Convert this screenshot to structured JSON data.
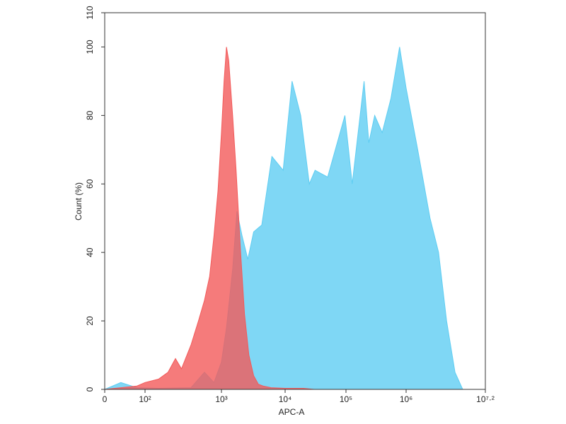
{
  "chart_data": {
    "type": "area",
    "x_label": "APC-A",
    "y_label": "Count (%)",
    "xticks": [
      {
        "value": 0,
        "label": "0"
      },
      {
        "value": 100,
        "label": "10²"
      },
      {
        "value": 1000,
        "label": "10³"
      },
      {
        "value": 10000,
        "label": "10⁴"
      },
      {
        "value": 100000,
        "label": "10⁵"
      },
      {
        "value": 1000000,
        "label": "10⁶"
      },
      {
        "value": 15848932,
        "label": "10⁷·²"
      }
    ],
    "xlim": [
      0,
      15848932
    ],
    "ylim": [
      0,
      110
    ],
    "yticks": [
      0,
      20,
      40,
      60,
      80,
      100,
      110
    ],
    "series": [
      {
        "color": "#5fcdf2",
        "x": [
          0,
          40,
          80,
          150,
          400,
          500,
          600,
          800,
          1000,
          1200,
          1500,
          1750,
          2100,
          2600,
          3200,
          4300,
          6200,
          9300,
          13000,
          18000,
          25000,
          31000,
          50000,
          96000,
          127000,
          200000,
          240000,
          300000,
          400000,
          560000,
          780000,
          1000000,
          1500000,
          2300000,
          3100000,
          4100000,
          5500000,
          7200000
        ],
        "values": [
          0,
          2,
          0.5,
          0.3,
          0.5,
          3,
          5,
          2,
          8,
          18,
          35,
          52,
          45,
          38,
          46,
          48,
          68,
          64,
          90,
          80,
          60,
          64,
          62,
          80,
          60,
          90,
          72,
          80,
          75,
          85,
          100,
          88,
          70,
          50,
          40,
          20,
          5,
          0
        ]
      },
      {
        "color": "#f25a5a",
        "x": [
          0,
          40,
          80,
          100,
          150,
          200,
          250,
          300,
          400,
          500,
          600,
          700,
          800,
          900,
          1000,
          1100,
          1200,
          1300,
          1500,
          1700,
          2000,
          2300,
          2700,
          3200,
          3800,
          4500,
          6000,
          10000,
          20000,
          30000
        ],
        "values": [
          0,
          0.5,
          1,
          2,
          3,
          5,
          9,
          6,
          13,
          20,
          26,
          33,
          45,
          58,
          75,
          90,
          100,
          96,
          80,
          64,
          40,
          22,
          10,
          4,
          1.5,
          1,
          0.5,
          0.3,
          0.3,
          0
        ]
      }
    ]
  }
}
